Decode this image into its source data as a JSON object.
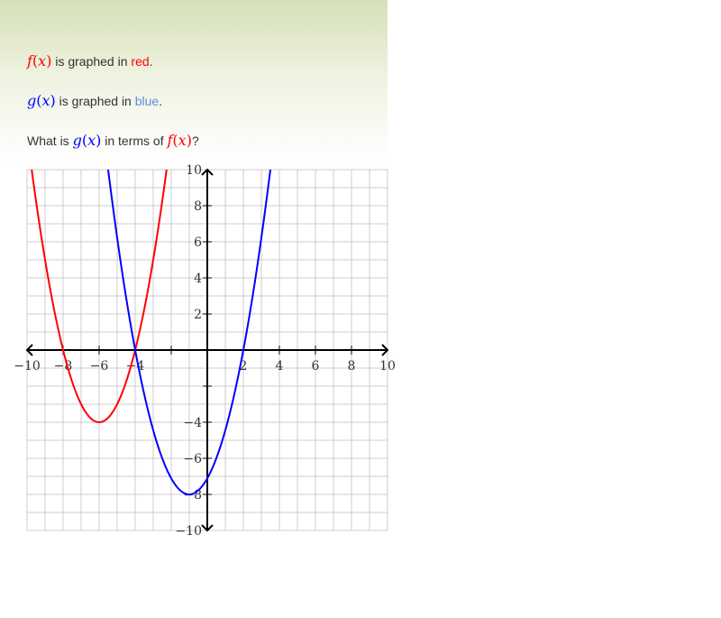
{
  "intro": {
    "f_line": {
      "fn": "f",
      "var": "x",
      "suffix_text": " is graphed in ",
      "color_word": "red",
      "end": "."
    },
    "g_line": {
      "fn": "g",
      "var": "x",
      "suffix_text": " is graphed in ",
      "color_word": "blue",
      "end": "."
    },
    "question": {
      "prefix": "What is ",
      "g_fn": "g",
      "g_var": "x",
      "middle": " in terms of ",
      "f_fn": "f",
      "f_var": "x",
      "end": "?"
    }
  },
  "colors": {
    "f_curve": "#ff0000",
    "g_curve": "#0000ff"
  },
  "chart_data": {
    "type": "line",
    "title": "",
    "xlabel": "",
    "ylabel": "",
    "xlim": [
      -10,
      10
    ],
    "ylim": [
      -10,
      10
    ],
    "grid": true,
    "x_tick_labels": [
      "−10",
      "−8",
      "−6",
      "−4",
      "2",
      "4",
      "6",
      "8",
      "10"
    ],
    "y_tick_labels": [
      "10",
      "8",
      "6",
      "4",
      "2",
      "−4",
      "−6",
      "−8",
      "−10"
    ],
    "series": [
      {
        "id": "f",
        "color": "#ff0000",
        "vertex": [
          -6,
          -4
        ],
        "x_intercepts": [
          -8,
          -4
        ]
      },
      {
        "id": "g",
        "color": "#0000ff",
        "vertex": [
          -1,
          -8
        ],
        "x_intercepts": [
          -4,
          2
        ]
      }
    ]
  }
}
